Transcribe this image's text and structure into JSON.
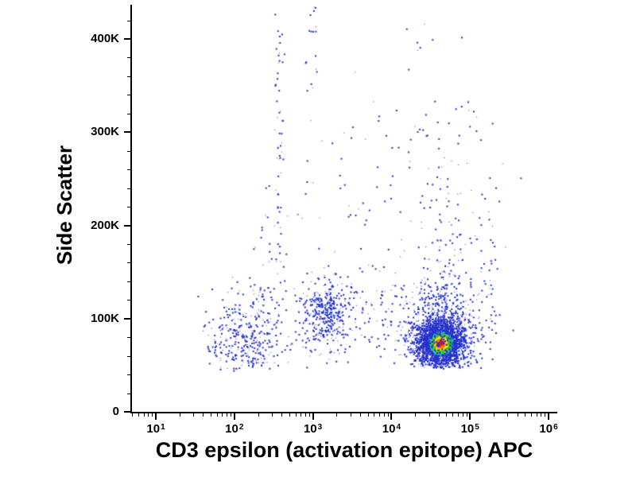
{
  "figure": {
    "background": "#ffffff",
    "axis_color": "#000000"
  },
  "chart_data": {
    "type": "scatter",
    "title": "",
    "xlabel": "CD3 epsilon (activation epitope) APC",
    "ylabel": "Side Scatter",
    "x_scale": "log10",
    "x_range_log10": [
      0.69,
      6.1
    ],
    "x_ticks": [
      {
        "base": "10",
        "exp": "1"
      },
      {
        "base": "10",
        "exp": "2"
      },
      {
        "base": "10",
        "exp": "3"
      },
      {
        "base": "10",
        "exp": "4"
      },
      {
        "base": "10",
        "exp": "5"
      },
      {
        "base": "10",
        "exp": "6"
      }
    ],
    "y_scale": "linear",
    "y_range": [
      0,
      440000
    ],
    "y_ticks": [
      {
        "value": 0,
        "label": "0"
      },
      {
        "value": 100000,
        "label": "100K"
      },
      {
        "value": 200000,
        "label": "200K"
      },
      {
        "value": 300000,
        "label": "300K"
      },
      {
        "value": 400000,
        "label": "400K"
      }
    ],
    "grid": false,
    "legend": false,
    "base_point_color": "#2531cd",
    "density_palette": [
      {
        "min_u": 0.965,
        "color": "#f01800"
      },
      {
        "min_u": 0.915,
        "color": "#ff8a00"
      },
      {
        "min_u": 0.845,
        "color": "#f2ee00"
      },
      {
        "min_u": 0.7,
        "color": "#3cc41e"
      },
      {
        "min_u": 0.615,
        "color": "#1ab8a8"
      }
    ],
    "populations": [
      {
        "name": "cd3-positive-core",
        "cx": 4.62,
        "cy": 74000,
        "sx": 0.155,
        "sy": 13000,
        "count": 2300,
        "color": "density",
        "y_min": 48000
      },
      {
        "name": "cd3-positive-halo",
        "cx": 4.6,
        "cy": 88000,
        "sx": 0.25,
        "sy": 26000,
        "count": 650,
        "color": "base",
        "y_min": 47000
      },
      {
        "name": "cd3-positive-upper-tail",
        "cx": 4.68,
        "cy": 150000,
        "sx": 0.17,
        "sy": 45000,
        "count": 110,
        "color": "base",
        "y_min": 60000
      },
      {
        "name": "cd3-positive-high-sparse",
        "cx": 4.62,
        "cy": 280000,
        "sx": 0.26,
        "sy": 70000,
        "count": 40,
        "color": "base"
      },
      {
        "name": "right-edge-column",
        "cx": 5.26,
        "cy": 130000,
        "sx": 0.045,
        "sy": 60000,
        "count": 40,
        "color": "base",
        "y_min": 50000
      },
      {
        "name": "monocyte-mid-cluster",
        "cx": 3.15,
        "cy": 110000,
        "sx": 0.15,
        "sy": 16000,
        "count": 330,
        "color": "base",
        "y_min": 55000
      },
      {
        "name": "mid-cluster-lower",
        "cx": 3.1,
        "cy": 85000,
        "sx": 0.17,
        "sy": 14000,
        "count": 70,
        "color": "base",
        "y_min": 50000
      },
      {
        "name": "cd3-negative-left-cluster",
        "cx": 2.15,
        "cy": 72000,
        "sx": 0.26,
        "sy": 21000,
        "count": 330,
        "color": "base",
        "y_min": 44000
      },
      {
        "name": "left-cluster-upper",
        "cx": 2.2,
        "cy": 115000,
        "sx": 0.22,
        "sy": 20000,
        "count": 70,
        "color": "base",
        "y_min": 46000
      },
      {
        "name": "debris-streak-column",
        "cx": 2.56,
        "cy": 300000,
        "sx": 0.03,
        "sy": 85000,
        "count": 55,
        "color": "base",
        "y_max": 442000
      },
      {
        "name": "top-streak-1e3",
        "cx": 2.98,
        "cy": 395000,
        "sx": 0.04,
        "sy": 38000,
        "count": 18,
        "color": "base"
      },
      {
        "name": "scatter-noise-mid",
        "cx": 3.6,
        "cy": 230000,
        "sx": 0.45,
        "sy": 70000,
        "count": 65,
        "color": "base"
      },
      {
        "name": "scatter-noise-right",
        "cx": 4.9,
        "cy": 230000,
        "sx": 0.3,
        "sy": 80000,
        "count": 45,
        "color": "base"
      },
      {
        "name": "inter-cluster-band",
        "cx": 3.7,
        "cy": 100000,
        "sx": 0.3,
        "sy": 30000,
        "count": 85,
        "color": "base",
        "y_min": 50000
      },
      {
        "name": "left-mid-sparse",
        "cx": 2.45,
        "cy": 180000,
        "sx": 0.12,
        "sy": 40000,
        "count": 25,
        "color": "base"
      },
      {
        "name": "green-outlier",
        "cx": 2.8,
        "cy": 213000,
        "sx": 0.005,
        "sy": 2000,
        "count": 1,
        "color": "#3cc41e"
      },
      {
        "name": "mid-green-fleck",
        "cx": 3.16,
        "cy": 112000,
        "sx": 0.02,
        "sy": 3000,
        "count": 2,
        "color": "#3cc41e"
      }
    ]
  }
}
